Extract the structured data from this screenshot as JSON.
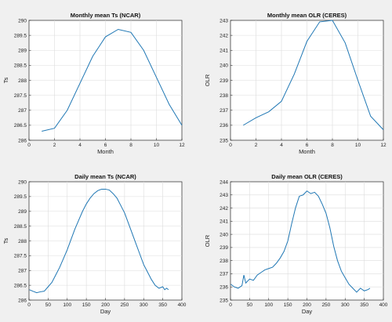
{
  "chart_data": [
    {
      "type": "line",
      "title": "Monthly mean Ts (NCAR)",
      "xlabel": "Month",
      "ylabel": "Ts",
      "xlim": [
        0,
        12
      ],
      "ylim": [
        286,
        290
      ],
      "xticks": [
        0,
        2,
        4,
        6,
        8,
        10,
        12
      ],
      "yticks": [
        286,
        286.5,
        287,
        287.5,
        288,
        288.5,
        289,
        289.5,
        290
      ],
      "grid": true,
      "series": [
        {
          "x": [
            1,
            2,
            3,
            4,
            5,
            6,
            7,
            8,
            9,
            10,
            11,
            12
          ],
          "values": [
            286.3,
            286.4,
            287.0,
            287.9,
            288.8,
            289.45,
            289.7,
            289.6,
            289.0,
            288.1,
            287.2,
            286.5
          ]
        }
      ]
    },
    {
      "type": "line",
      "title": "Monthly mean OLR (CERES)",
      "xlabel": "Month",
      "ylabel": "OLR",
      "xlim": [
        0,
        12
      ],
      "ylim": [
        235,
        243
      ],
      "xticks": [
        0,
        2,
        4,
        6,
        8,
        10,
        12
      ],
      "yticks": [
        235,
        236,
        237,
        238,
        239,
        240,
        241,
        242,
        243
      ],
      "grid": true,
      "series": [
        {
          "x": [
            1,
            2,
            3,
            4,
            5,
            6,
            7,
            8,
            9,
            10,
            11,
            12
          ],
          "values": [
            236.0,
            236.5,
            236.9,
            237.6,
            239.4,
            241.6,
            242.9,
            243.0,
            241.5,
            239.0,
            236.6,
            235.7
          ]
        }
      ]
    },
    {
      "type": "line",
      "title": "Daily mean Ts (NCAR)",
      "xlabel": "Day",
      "ylabel": "Ts",
      "xlim": [
        0,
        400
      ],
      "ylim": [
        286,
        290
      ],
      "xticks": [
        0,
        50,
        100,
        150,
        200,
        250,
        300,
        350,
        400
      ],
      "yticks": [
        286,
        286.5,
        287,
        287.5,
        288,
        288.5,
        289,
        289.5,
        290
      ],
      "grid": true,
      "series": [
        {
          "x": [
            1,
            10,
            20,
            30,
            40,
            50,
            60,
            70,
            80,
            90,
            100,
            110,
            120,
            130,
            140,
            150,
            160,
            170,
            180,
            190,
            200,
            210,
            220,
            230,
            240,
            250,
            260,
            270,
            280,
            290,
            300,
            310,
            320,
            330,
            340,
            350,
            355,
            360,
            365
          ],
          "values": [
            286.35,
            286.3,
            286.25,
            286.28,
            286.3,
            286.45,
            286.6,
            286.85,
            287.1,
            287.4,
            287.7,
            288.05,
            288.4,
            288.7,
            289.0,
            289.25,
            289.45,
            289.6,
            289.7,
            289.75,
            289.75,
            289.72,
            289.6,
            289.45,
            289.2,
            288.95,
            288.6,
            288.25,
            287.9,
            287.55,
            287.2,
            286.95,
            286.7,
            286.5,
            286.4,
            286.45,
            286.35,
            286.4,
            286.35
          ]
        }
      ]
    },
    {
      "type": "line",
      "title": "Daily mean OLR (CERES)",
      "xlabel": "Day",
      "ylabel": "OLR",
      "xlim": [
        0,
        400
      ],
      "ylim": [
        235,
        244
      ],
      "xticks": [
        0,
        50,
        100,
        150,
        200,
        250,
        300,
        350,
        400
      ],
      "yticks": [
        235,
        236,
        237,
        238,
        239,
        240,
        241,
        242,
        243,
        244
      ],
      "grid": true,
      "series": [
        {
          "x": [
            1,
            10,
            20,
            30,
            35,
            40,
            50,
            60,
            70,
            80,
            90,
            100,
            110,
            120,
            130,
            140,
            150,
            160,
            170,
            180,
            190,
            200,
            210,
            220,
            230,
            240,
            250,
            260,
            270,
            280,
            290,
            300,
            310,
            320,
            330,
            340,
            350,
            360,
            365
          ],
          "values": [
            236.2,
            236.0,
            235.9,
            236.1,
            236.9,
            236.3,
            236.6,
            236.5,
            236.9,
            237.1,
            237.3,
            237.4,
            237.5,
            237.8,
            238.2,
            238.7,
            239.5,
            240.8,
            242.0,
            242.9,
            243.0,
            243.3,
            243.1,
            243.2,
            242.9,
            242.3,
            241.6,
            240.5,
            239.1,
            238.0,
            237.2,
            236.7,
            236.2,
            235.9,
            235.6,
            235.9,
            235.7,
            235.8,
            235.9
          ]
        }
      ]
    }
  ]
}
